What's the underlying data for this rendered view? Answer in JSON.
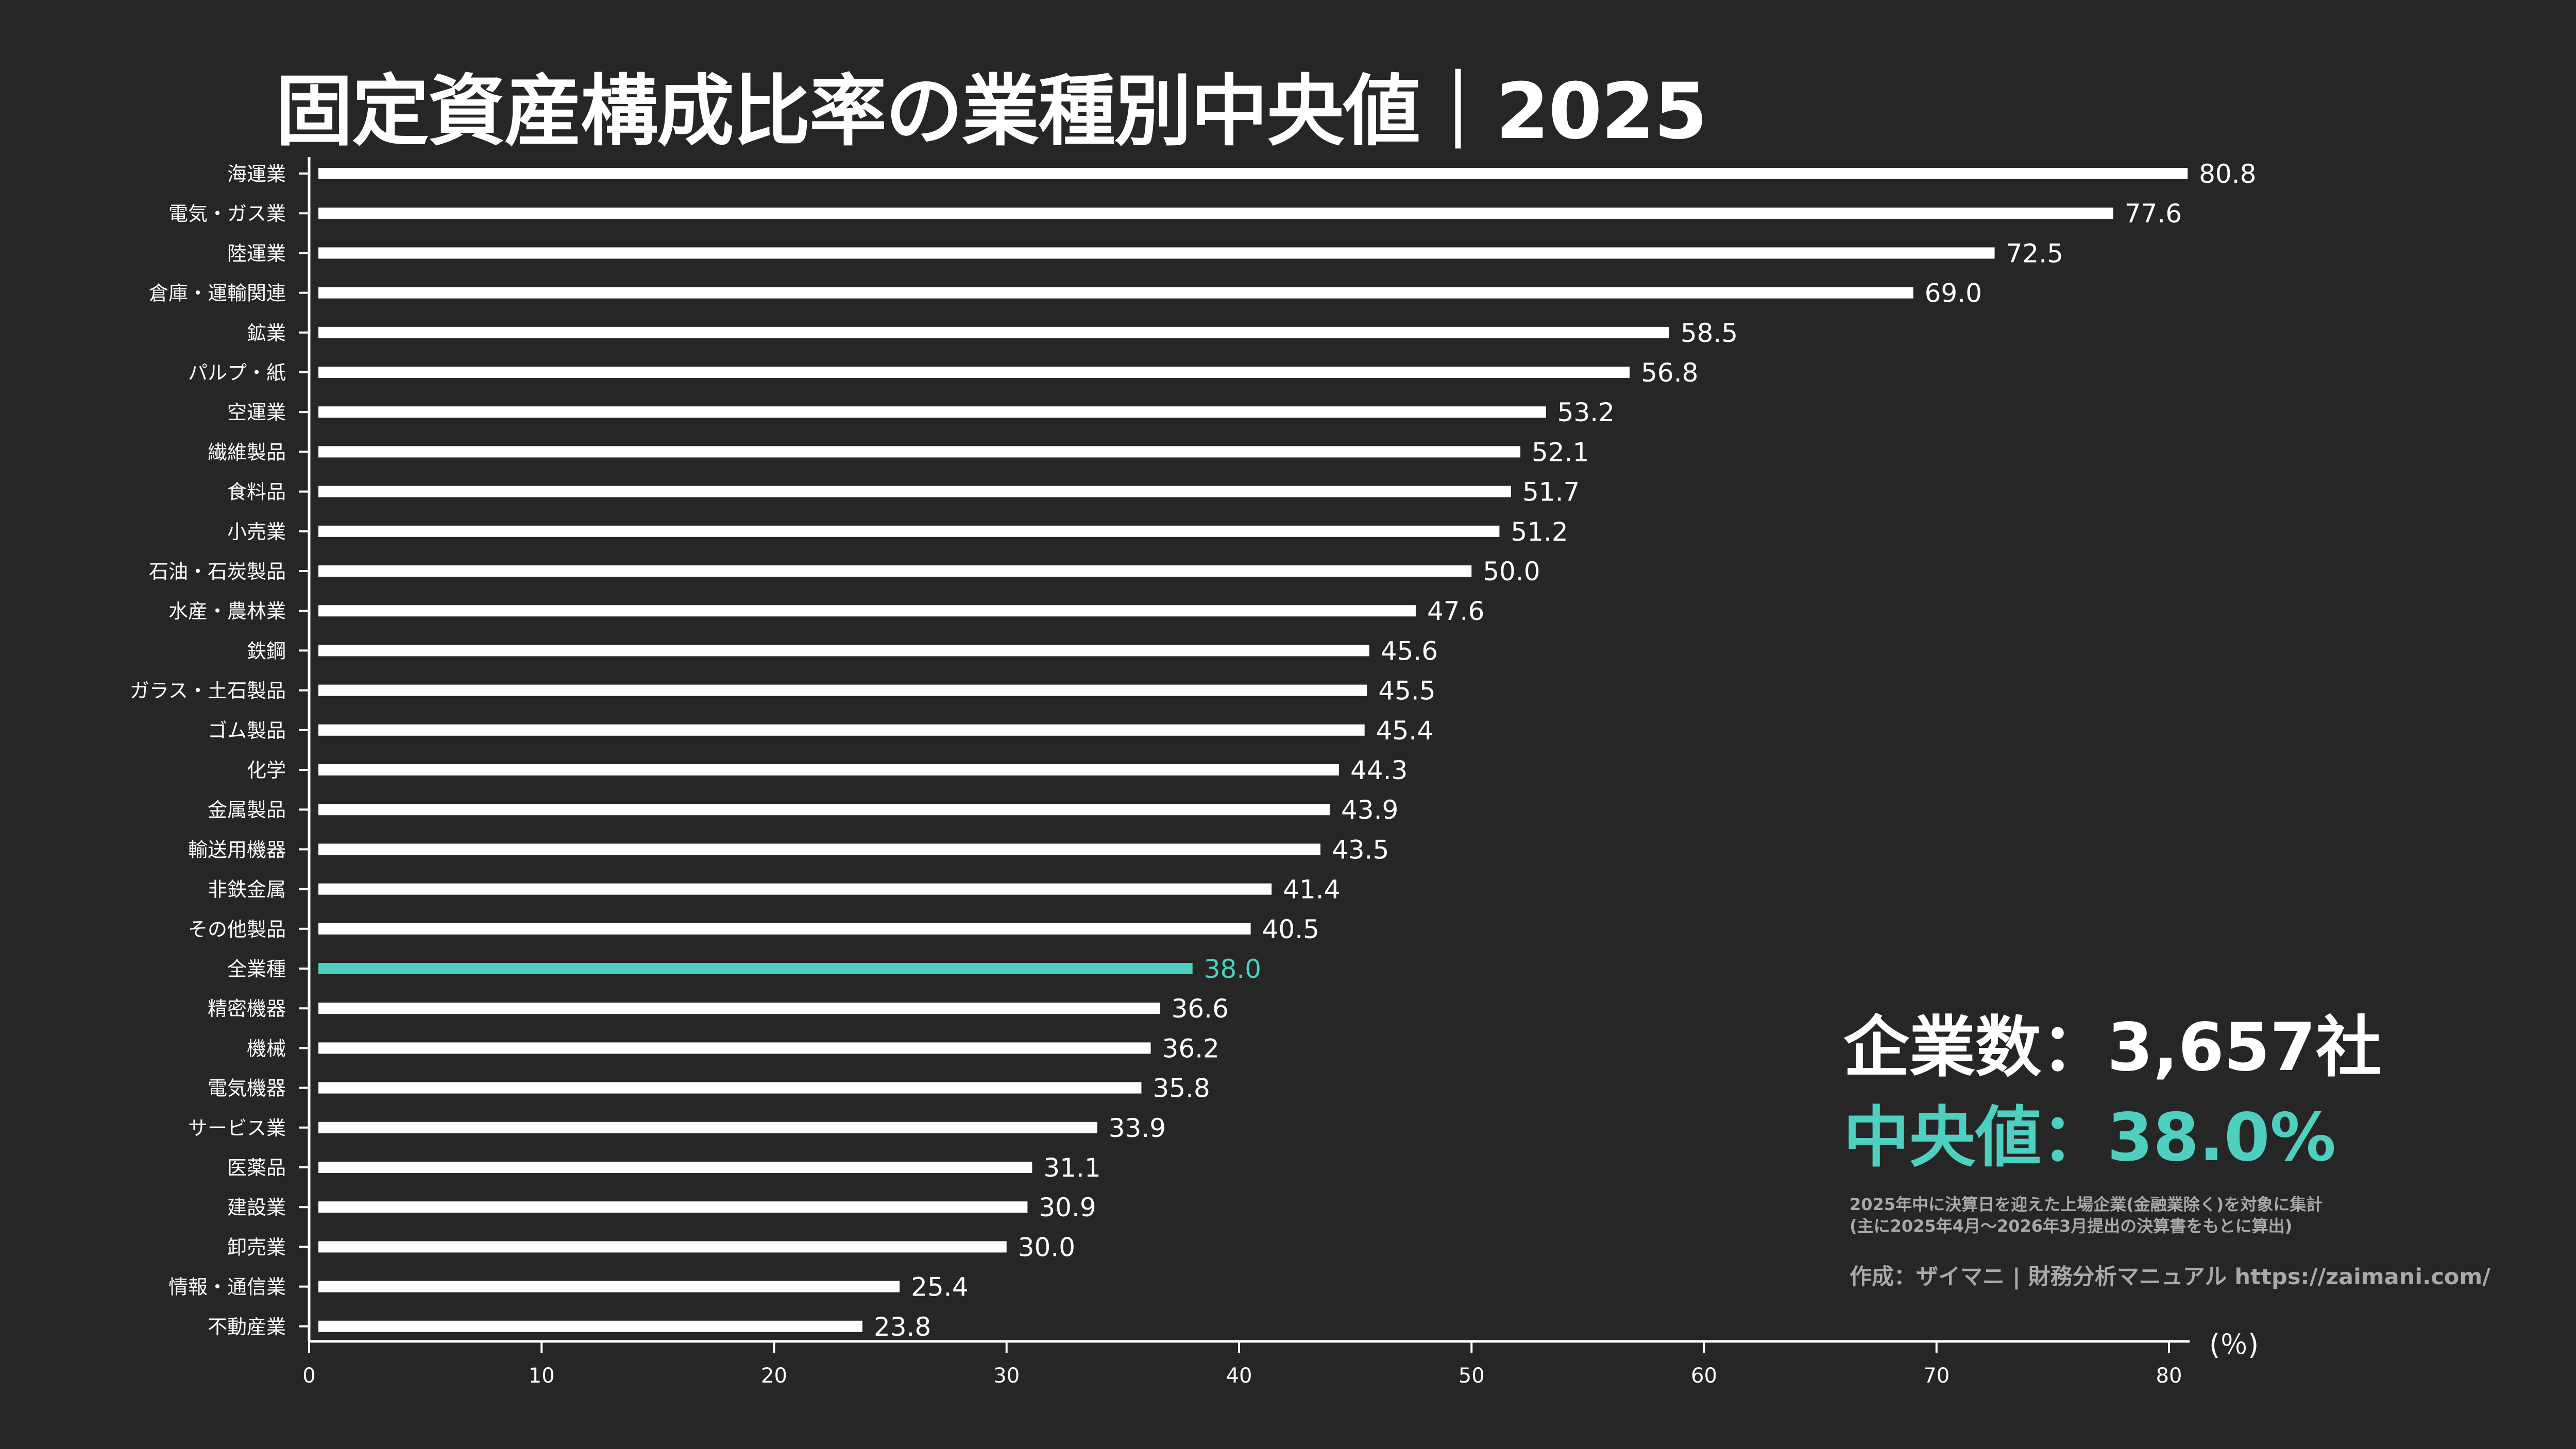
{
  "title": "固定資産構成比率の業種別中央値｜2025",
  "summary": {
    "count_label": "企業数：3,657社",
    "median_label": "中央値：38.0%",
    "note_line1": "2025年中に決算日を迎えた上場企業(金融業除く)を対象に集計",
    "note_line2": "(主に2025年4月～2026年3月提出の決算書をもとに算出)",
    "credit": "作成：ザイマニ | 財務分析マニュアル https://zaimani.com/",
    "unit": "(％)"
  },
  "colors": {
    "background": "#262626",
    "bar": "#ffffff",
    "highlight": "#4fcfc0",
    "note_text": "#a9a9a9"
  },
  "chart_data": {
    "type": "bar",
    "orientation": "horizontal",
    "title": "固定資産構成比率の業種別中央値｜2025",
    "xlabel": "(％)",
    "ylabel": "",
    "xlim": [
      0,
      80
    ],
    "xticks": [
      0,
      10,
      20,
      30,
      40,
      50,
      60,
      70,
      80
    ],
    "grid": false,
    "highlight_category": "全業種",
    "categories": [
      "海運業",
      "電気・ガス業",
      "陸運業",
      "倉庫・運輸関連",
      "鉱業",
      "パルプ・紙",
      "空運業",
      "繊維製品",
      "食料品",
      "小売業",
      "石油・石炭製品",
      "水産・農林業",
      "鉄鋼",
      "ガラス・土石製品",
      "ゴム製品",
      "化学",
      "金属製品",
      "輸送用機器",
      "非鉄金属",
      "その他製品",
      "全業種",
      "精密機器",
      "機械",
      "電気機器",
      "サービス業",
      "医薬品",
      "建設業",
      "卸売業",
      "情報・通信業",
      "不動産業"
    ],
    "values": [
      80.8,
      77.6,
      72.5,
      69.0,
      58.5,
      56.8,
      53.2,
      52.1,
      51.7,
      51.2,
      50.0,
      47.6,
      45.6,
      45.5,
      45.4,
      44.3,
      43.9,
      43.5,
      41.4,
      40.5,
      38.0,
      36.6,
      36.2,
      35.8,
      33.9,
      31.1,
      30.9,
      30.0,
      25.4,
      23.8
    ],
    "value_labels": [
      "80.8",
      "77.6",
      "72.5",
      "69.0",
      "58.5",
      "56.8",
      "53.2",
      "52.1",
      "51.7",
      "51.2",
      "50.0",
      "47.6",
      "45.6",
      "45.5",
      "45.4",
      "44.3",
      "43.9",
      "43.5",
      "41.4",
      "40.5",
      "38.0",
      "36.6",
      "36.2",
      "35.8",
      "33.9",
      "31.1",
      "30.9",
      "30.0",
      "25.4",
      "23.8"
    ]
  }
}
